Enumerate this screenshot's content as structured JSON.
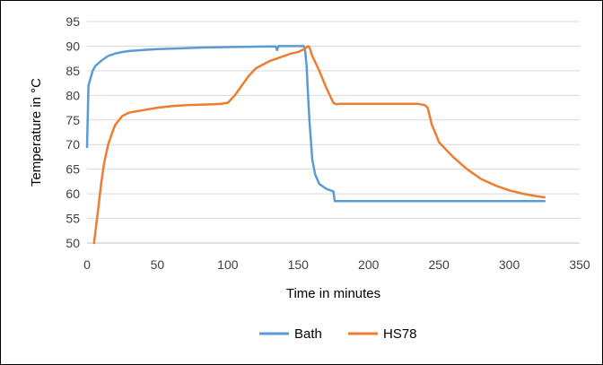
{
  "chart_data": {
    "type": "line",
    "title": "",
    "xlabel": "Time in minutes",
    "ylabel": "Temperature in °C",
    "xlim": [
      0,
      350
    ],
    "ylim": [
      50,
      95
    ],
    "x_ticks": [
      0,
      50,
      100,
      150,
      200,
      250,
      300,
      350
    ],
    "y_ticks": [
      50,
      55,
      60,
      65,
      70,
      75,
      80,
      85,
      90,
      95
    ],
    "x_tick_labels": [
      "0",
      "50",
      "100",
      "150",
      "200",
      "250",
      "300",
      "350"
    ],
    "y_tick_labels": [
      "50",
      "55",
      "60",
      "65",
      "70",
      "75",
      "80",
      "85",
      "90",
      "95"
    ],
    "grid": "horizontal",
    "legend_position": "bottom",
    "series": [
      {
        "name": "Bath",
        "color": "#5b9bd5",
        "x": [
          0,
          1,
          2,
          4,
          6,
          8,
          10,
          15,
          20,
          25,
          30,
          40,
          50,
          60,
          80,
          100,
          120,
          134,
          135,
          136,
          140,
          150,
          154,
          155,
          156,
          157,
          158,
          160,
          162,
          165,
          170,
          175,
          176,
          180,
          200,
          250,
          300,
          325
        ],
        "y": [
          69.5,
          82,
          83,
          85,
          86,
          86.5,
          87,
          88,
          88.5,
          88.8,
          89,
          89.2,
          89.4,
          89.5,
          89.7,
          89.8,
          89.9,
          89.95,
          89.2,
          90,
          90,
          90,
          90,
          89,
          86,
          80,
          75,
          67,
          64,
          62,
          61,
          60.5,
          58.5,
          58.5,
          58.5,
          58.5,
          58.5,
          58.5
        ]
      },
      {
        "name": "HS78",
        "color": "#ed7d31",
        "x": [
          5,
          8,
          10,
          12,
          15,
          18,
          20,
          25,
          30,
          40,
          50,
          60,
          70,
          80,
          90,
          95,
          100,
          105,
          110,
          115,
          120,
          130,
          140,
          145,
          150,
          155,
          157,
          158,
          160,
          165,
          170,
          175,
          177,
          180,
          200,
          220,
          235,
          240,
          242,
          245,
          248,
          250,
          260,
          270,
          280,
          290,
          300,
          310,
          320,
          325
        ],
        "y": [
          50,
          57,
          62,
          66,
          70,
          72.5,
          74,
          75.8,
          76.5,
          77,
          77.5,
          77.8,
          78,
          78.1,
          78.2,
          78.3,
          78.5,
          80,
          82,
          84,
          85.5,
          87,
          88,
          88.5,
          88.8,
          89.5,
          90,
          89.8,
          88,
          85,
          81.5,
          78.5,
          78.2,
          78.3,
          78.3,
          78.3,
          78.3,
          78,
          77.5,
          74,
          72,
          70.5,
          67.5,
          65,
          63,
          61.7,
          60.7,
          60,
          59.5,
          59.3
        ]
      }
    ]
  }
}
